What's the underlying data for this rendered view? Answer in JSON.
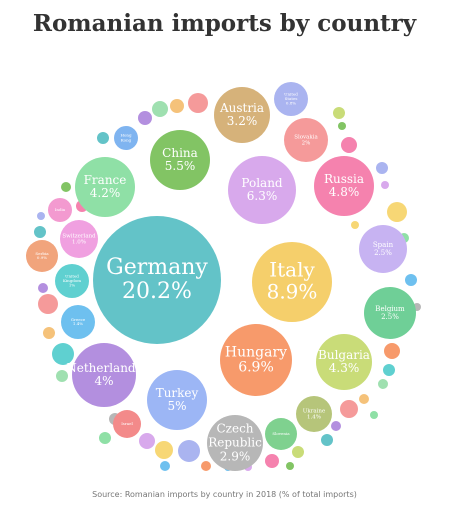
{
  "chart_data": {
    "type": "bubble",
    "title": "Romanian imports by country",
    "unit": "%",
    "series": [
      {
        "name": "Germany",
        "value": 20.2,
        "label": "20.2%",
        "color": "#63c3c8"
      },
      {
        "name": "Italy",
        "value": 8.9,
        "label": "8.9%",
        "color": "#f5cf6b"
      },
      {
        "name": "Hungary",
        "value": 6.9,
        "label": "6.9%",
        "color": "#f79a6b"
      },
      {
        "name": "Poland",
        "value": 6.3,
        "label": "6.3%",
        "color": "#d8a9ec"
      },
      {
        "name": "China",
        "value": 5.5,
        "label": "5.5%",
        "color": "#82c464"
      },
      {
        "name": "Turkey",
        "value": 5.0,
        "label": "5%",
        "color": "#9cb6f5"
      },
      {
        "name": "Russia",
        "value": 4.8,
        "label": "4.8%",
        "color": "#f582ae"
      },
      {
        "name": "Bulgaria",
        "value": 4.3,
        "label": "4.3%",
        "color": "#c9dc78"
      },
      {
        "name": "France",
        "value": 4.2,
        "label": "4.2%",
        "color": "#8fe0a6"
      },
      {
        "name": "Netherlands",
        "value": 4.0,
        "label": "4%",
        "color": "#b38fdf"
      },
      {
        "name": "Austria",
        "value": 3.2,
        "label": "3.2%",
        "color": "#d6b27a"
      },
      {
        "name": "Czech Republic",
        "value": 2.9,
        "label": "2.9%",
        "color": "#b7b7b7"
      },
      {
        "name": "Spain",
        "value": 2.5,
        "label": "2.5%",
        "color": "#c7b3f2"
      },
      {
        "name": "Belgium",
        "value": 2.5,
        "label": "2.5%",
        "color": "#6fcf97"
      },
      {
        "name": "Slovakia",
        "value": 2.0,
        "label": "2%",
        "color": "#f59a9a"
      },
      {
        "name": "Ukraine",
        "value": 1.4,
        "label": "1.4%",
        "color": "#b6c57a"
      },
      {
        "name": "Greece",
        "value": 1.4,
        "label": "1.4%",
        "color": "#6ec0ef"
      },
      {
        "name": "Slovenia",
        "value": 1.0,
        "label": "",
        "color": "#7fd18f"
      },
      {
        "name": "Switzerland",
        "value": 1.0,
        "label": "1.0%",
        "color": "#f0a0e0"
      },
      {
        "name": "United Kingdom",
        "value": 1.0,
        "label": "1%",
        "color": "#5fd0d0"
      },
      {
        "name": "Serbia",
        "value": 0.9,
        "label": "0.9%",
        "color": "#f1a47c"
      },
      {
        "name": "United States",
        "value": 0.8,
        "label": "0.8%",
        "color": "#aab4f0"
      },
      {
        "name": "Hong Kong",
        "value": 0.5,
        "label": "",
        "color": "#7fb4f0"
      },
      {
        "name": "India",
        "value": 0.5,
        "label": "",
        "color": "#f39ad0"
      },
      {
        "name": "Israel",
        "value": 0.5,
        "label": "",
        "color": "#f38a8a"
      }
    ],
    "minor_bubbles": {
      "colors": [
        "#9fe0b0",
        "#f5c27a",
        "#f59a9a",
        "#b38fdf",
        "#63c3c8",
        "#c9dc78",
        "#f582ae",
        "#82c464",
        "#aab4f0",
        "#f7d775",
        "#d8a9ec",
        "#6ec0ef",
        "#8fe0a6",
        "#b7b7b7",
        "#f79a6b",
        "#5fd0d0"
      ]
    }
  },
  "footer": "Source: Romanian imports by country in 2018 (% of total imports)"
}
